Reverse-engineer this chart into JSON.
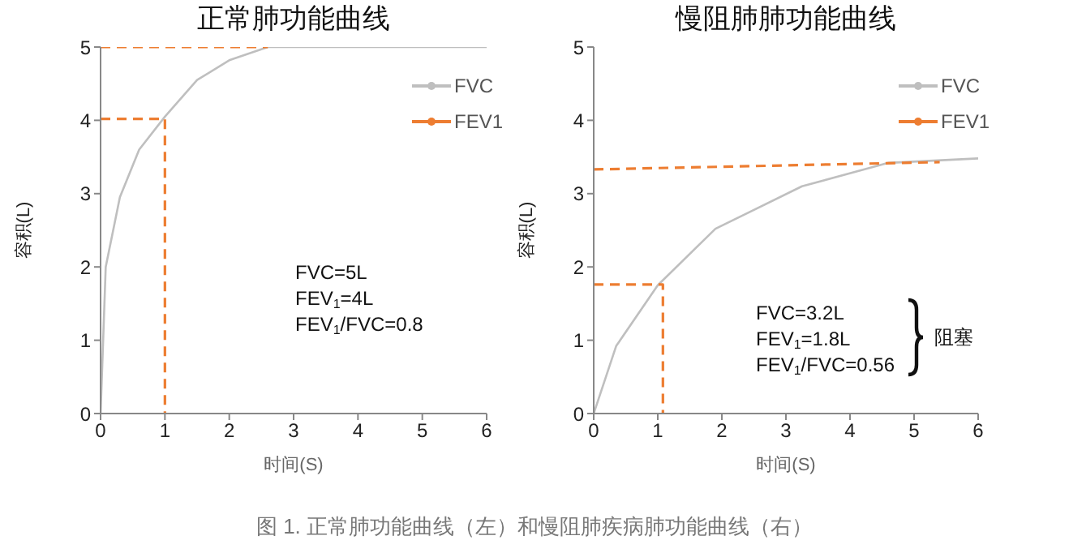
{
  "chart_data": [
    {
      "type": "line",
      "title": "正常肺功能曲线",
      "xlabel": "时间(S)",
      "ylabel": "容积(L)",
      "xlim": [
        0,
        6
      ],
      "ylim": [
        0,
        5
      ],
      "xticks": [
        0,
        1,
        2,
        3,
        4,
        5,
        6
      ],
      "yticks": [
        0,
        1,
        2,
        3,
        4,
        5
      ],
      "legend": "top right",
      "series": [
        {
          "name": "FVC",
          "color": "#bfbfbf",
          "line_style": "solid",
          "x": [
            0,
            0.08,
            0.3,
            0.6,
            1,
            1.5,
            2,
            2.6,
            6
          ],
          "values": [
            0,
            2,
            2.95,
            3.6,
            4.05,
            4.55,
            4.82,
            5,
            5
          ]
        },
        {
          "name": "FEV1",
          "color": "#ed7d31",
          "line_style": "dashed",
          "x": [
            0,
            2.6,
            null,
            0,
            1,
            1
          ],
          "values": [
            5,
            5,
            null,
            4.02,
            4.02,
            0
          ]
        }
      ],
      "annotations": [
        "FVC=5L",
        "FEV$_{1}$=4L",
        "FEV$_{1}$/FVC=0.8"
      ]
    },
    {
      "type": "line",
      "title": "慢阻肺肺功能曲线",
      "xlabel": "时间(S)",
      "ylabel": "容积(L)",
      "xlim": [
        0,
        6
      ],
      "ylim": [
        0,
        5
      ],
      "xticks": [
        0,
        1,
        2,
        3,
        4,
        5,
        6
      ],
      "yticks": [
        0,
        1,
        2,
        3,
        4,
        5
      ],
      "legend": "top right",
      "series": [
        {
          "name": "FVC",
          "color": "#bfbfbf",
          "line_style": "solid",
          "x": [
            0,
            0.35,
            1,
            1.9,
            3.25,
            4.6,
            6
          ],
          "values": [
            0,
            0.92,
            1.75,
            2.52,
            3.1,
            3.42,
            3.48
          ]
        },
        {
          "name": "FEV1",
          "color": "#ed7d31",
          "line_style": "dashed",
          "x": [
            0,
            5.4,
            null,
            0,
            1.08,
            1.08
          ],
          "values": [
            3.33,
            3.43,
            null,
            1.76,
            1.76,
            0
          ]
        }
      ],
      "annotations": [
        "FVC=3.2L",
        "FEV$_{1}$=1.8L",
        "FEV$_{1}$/FVC=0.56",
        "阻塞",
        "图 1. 正常肺功能曲线（左）和慢阻肺疾病肺功能曲线（右）"
      ]
    }
  ]
}
